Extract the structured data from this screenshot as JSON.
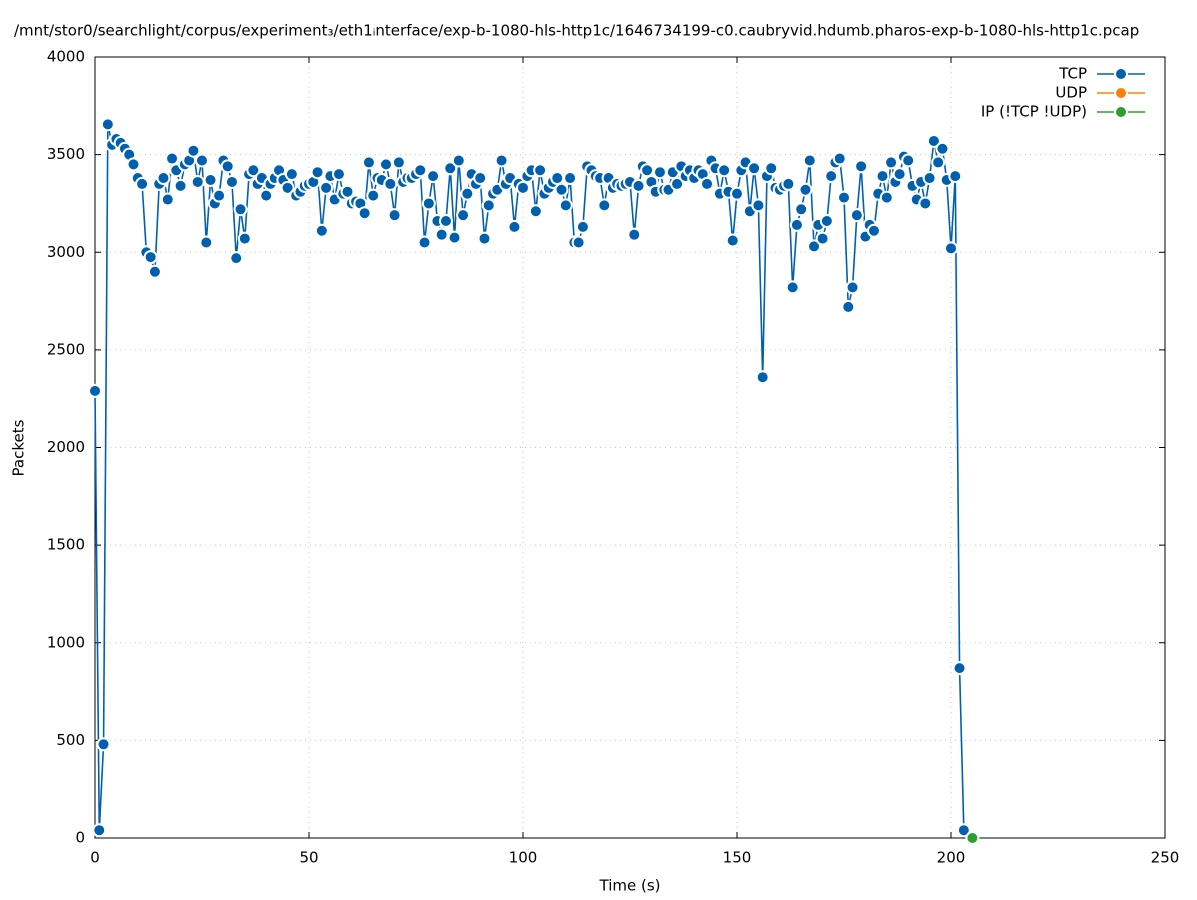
{
  "chart_data": {
    "type": "line",
    "title": "/mnt/stor0/searchlight/corpus/experiment₃/eth1ᵢnterface/exp-b-1080-hls-http1c/1646734199-c0.caubryvid.hdumb.pharos-exp-b-1080-hls-http1c.pcap",
    "x_label": "Time (s)",
    "y_label": "Packets",
    "xlim": [
      0,
      250
    ],
    "xticks": [
      0,
      50,
      100,
      150,
      200,
      250
    ],
    "ylim": [
      0,
      4000
    ],
    "yticks": [
      0,
      500,
      1000,
      1500,
      2000,
      2500,
      3000,
      3500,
      4000
    ],
    "grid": true,
    "legend": "top-right",
    "series": [
      {
        "name": "TCP",
        "color": "#0060ad",
        "x": [
          0,
          1,
          2,
          3,
          4,
          5,
          6,
          7,
          8,
          9,
          10,
          11,
          12,
          13,
          14,
          15,
          16,
          17,
          18,
          19,
          20,
          21,
          22,
          23,
          24,
          25,
          26,
          27,
          28,
          29,
          30,
          31,
          32,
          33,
          34,
          35,
          36,
          37,
          38,
          39,
          40,
          41,
          42,
          43,
          44,
          45,
          46,
          47,
          48,
          49,
          50,
          51,
          52,
          53,
          54,
          55,
          56,
          57,
          58,
          59,
          60,
          61,
          62,
          63,
          64,
          65,
          66,
          67,
          68,
          69,
          70,
          71,
          72,
          73,
          74,
          75,
          76,
          77,
          78,
          79,
          80,
          81,
          82,
          83,
          84,
          85,
          86,
          87,
          88,
          89,
          90,
          91,
          92,
          93,
          94,
          95,
          96,
          97,
          98,
          99,
          100,
          101,
          102,
          103,
          104,
          105,
          106,
          107,
          108,
          109,
          110,
          111,
          112,
          113,
          114,
          115,
          116,
          117,
          118,
          119,
          120,
          121,
          122,
          123,
          124,
          125,
          126,
          127,
          128,
          129,
          130,
          131,
          132,
          133,
          134,
          135,
          136,
          137,
          138,
          139,
          140,
          141,
          142,
          143,
          144,
          145,
          146,
          147,
          148,
          149,
          150,
          151,
          152,
          153,
          154,
          155,
          156,
          157,
          158,
          159,
          160,
          161,
          162,
          163,
          164,
          165,
          166,
          167,
          168,
          169,
          170,
          171,
          172,
          173,
          174,
          175,
          176,
          177,
          178,
          179,
          180,
          181,
          182,
          183,
          184,
          185,
          186,
          187,
          188,
          189,
          190,
          191,
          192,
          193,
          194,
          195,
          196,
          197,
          198,
          199,
          200,
          201,
          202,
          203
        ],
        "values": [
          2290,
          40,
          480,
          3655,
          3550,
          3580,
          3560,
          3530,
          3500,
          3450,
          3380,
          3350,
          3000,
          2975,
          2900,
          3350,
          3380,
          3270,
          3480,
          3420,
          3340,
          3450,
          3470,
          3520,
          3360,
          3470,
          3050,
          3370,
          3250,
          3290,
          3470,
          3440,
          3360,
          2970,
          3220,
          3070,
          3400,
          3420,
          3350,
          3380,
          3290,
          3350,
          3380,
          3420,
          3370,
          3330,
          3400,
          3290,
          3310,
          3340,
          3350,
          3360,
          3410,
          3110,
          3330,
          3390,
          3270,
          3400,
          3300,
          3310,
          3250,
          3260,
          3250,
          3200,
          3460,
          3290,
          3380,
          3370,
          3450,
          3350,
          3190,
          3460,
          3360,
          3380,
          3380,
          3400,
          3420,
          3050,
          3250,
          3390,
          3160,
          3090,
          3160,
          3430,
          3075,
          3470,
          3190,
          3300,
          3400,
          3350,
          3380,
          3070,
          3240,
          3300,
          3320,
          3470,
          3350,
          3380,
          3130,
          3350,
          3330,
          3390,
          3420,
          3210,
          3420,
          3300,
          3330,
          3360,
          3380,
          3320,
          3240,
          3380,
          3050,
          3050,
          3130,
          3440,
          3420,
          3390,
          3380,
          3240,
          3380,
          3330,
          3350,
          3340,
          3350,
          3360,
          3090,
          3340,
          3440,
          3420,
          3360,
          3310,
          3410,
          3320,
          3320,
          3410,
          3350,
          3440,
          3390,
          3420,
          3380,
          3420,
          3400,
          3350,
          3470,
          3430,
          3300,
          3420,
          3310,
          3060,
          3300,
          3420,
          3460,
          3210,
          3430,
          3240,
          2360,
          3390,
          3430,
          3330,
          3320,
          3340,
          3350,
          2820,
          3140,
          3220,
          3320,
          3470,
          3030,
          3140,
          3070,
          3160,
          3390,
          3460,
          3480,
          3280,
          2720,
          2820,
          3190,
          3440,
          3080,
          3140,
          3110,
          3300,
          3390,
          3280,
          3460,
          3360,
          3400,
          3490,
          3470,
          3340,
          3270,
          3360,
          3250,
          3380,
          3570,
          3460,
          3530,
          3370,
          3020,
          3390,
          870,
          40
        ]
      },
      {
        "name": "UDP",
        "color": "#ff7f0e",
        "x": [],
        "values": []
      },
      {
        "name": "IP (!TCP  !UDP)",
        "color": "#2ca02c",
        "x": [
          205
        ],
        "values": [
          0
        ]
      }
    ]
  }
}
